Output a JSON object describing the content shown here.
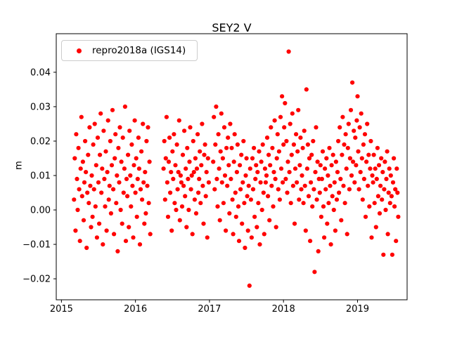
{
  "chart_data": {
    "type": "scatter",
    "title": "SEY2 V",
    "xlabel": "",
    "ylabel": "m",
    "grid": false,
    "legend_position": "upper left",
    "xlim": [
      2014.93,
      2019.67
    ],
    "ylim": [
      -0.0261,
      0.0512
    ],
    "xticks": {
      "values": [
        2015,
        2016,
        2017,
        2018,
        2019
      ],
      "labels": [
        "2015",
        "2016",
        "2017",
        "2018",
        "2019"
      ]
    },
    "yticks": {
      "values": [
        -0.02,
        -0.01,
        0.0,
        0.01,
        0.02,
        0.03,
        0.04
      ],
      "labels": [
        "−0.02",
        "−0.01",
        "0.00",
        "0.01",
        "0.02",
        "0.03",
        "0.04"
      ]
    },
    "series": [
      {
        "name": "repro2018a (IGS14)",
        "color": "#ff0000",
        "marker": "circle",
        "marker_radius_px": 3.1,
        "y_unit_scale": 0.001,
        "runs": [
          {
            "x_start": 2015.17,
            "x_step": 0.01,
            "y_mm": [
              3,
              15,
              -6,
              22,
              9,
              0,
              18,
              6,
              -9,
              12,
              27,
              4,
              14,
              -3,
              8,
              20,
              11,
              -11,
              5,
              16,
              2,
              24,
              7,
              -5,
              10,
              -2,
              19,
              6,
              25,
              1,
              13,
              -8,
              21,
              8,
              -4,
              16,
              28,
              5,
              12,
              -10,
              23,
              9,
              1,
              17,
              -6,
              11,
              26,
              3,
              7,
              20,
              -1,
              13,
              29,
              6,
              -7,
              15,
              22,
              2,
              10,
              -12,
              18,
              8,
              24,
              0,
              14,
              -4,
              21,
              5,
              12,
              30,
              -9,
              9,
              4,
              16,
              -5,
              23,
              10,
              1,
              19,
              7,
              -8,
              13,
              26,
              5,
              15,
              -2,
              9,
              21,
              12,
              -10,
              6,
              17,
              3,
              25,
              8,
              -4,
              11,
              -1,
              20,
              7,
              24,
              2,
              14,
              -7
            ]
          },
          {
            "x_start": 2016.38,
            "x_step": 0.01,
            "y_mm": [
              12,
              20,
              3,
              15,
              27,
              8,
              -2,
              14,
              21,
              5,
              11,
              -6,
              17,
              9,
              22,
              2,
              13,
              0,
              19,
              6,
              11,
              26,
              -3,
              10,
              8,
              1,
              16,
              7,
              23,
              4,
              12,
              -5,
              18,
              9,
              0,
              14,
              24,
              6,
              10,
              -7,
              20,
              11,
              3,
              15,
              -1,
              12,
              22,
              5,
              9,
              17,
              2,
              13,
              25,
              7,
              -4,
              16,
              19,
              4,
              11,
              -8,
              15,
              8
            ]
          },
          {
            "x_start": 2017.05,
            "x_step": 0.01,
            "y_mm": [
              14,
              27,
              6,
              19,
              30,
              9,
              1,
              22,
              12,
              -3,
              17,
              28,
              8,
              15,
              2,
              24,
              10,
              -6,
              18,
              7,
              21,
              13,
              -1,
              25,
              9,
              18,
              3,
              -7,
              14,
              22,
              5,
              -2,
              11,
              19,
              1,
              -9,
              13,
              6,
              16,
              -4,
              8,
              20,
              2,
              -11,
              10,
              15,
              4,
              -6,
              7,
              -22,
              12,
              3,
              -8,
              15,
              6,
              18,
              -2,
              9,
              13,
              -5,
              11,
              2,
              17,
              -10,
              8,
              14,
              0,
              19,
              5,
              -7,
              12,
              8,
              10,
              21,
              4,
              16,
              -3,
              13,
              24,
              7,
              18,
              1,
              11,
              26,
              9,
              -5,
              15,
              22,
              6,
              17,
              3,
              27,
              12,
              33,
              8,
              19,
              24,
              31,
              9,
              20,
              5,
              14,
              46,
              11,
              25,
              2,
              16,
              28,
              7,
              19,
              -4,
              12,
              22,
              8,
              17,
              29,
              3,
              13,
              21,
              6,
              10,
              18,
              2,
              23,
              7,
              -6,
              35,
              12,
              19,
              4,
              15,
              -9,
              8,
              16,
              1,
              20,
              6,
              -18,
              11,
              24,
              3,
              14,
              -12,
              9,
              5,
              13,
              -2,
              9,
              17,
              1,
              -8,
              12,
              6,
              15,
              -4,
              10,
              2,
              18,
              7,
              -10,
              13,
              4,
              16,
              0,
              8,
              -6,
              14,
              3,
              11,
              20,
              5,
              24,
              9,
              -3,
              16,
              27,
              7,
              19,
              2,
              22,
              12,
              -7,
              18,
              25,
              6,
              15,
              29,
              10,
              37,
              14,
              23,
              8,
              21,
              13,
              26,
              33,
              17,
              6,
              24,
              11,
              28,
              15,
              3,
              19,
              9,
              22,
              -2,
              14,
              25,
              7,
              16,
              1,
              12,
              20,
              -8,
              10,
              8,
              16,
              2,
              12,
              -5,
              9,
              18,
              4,
              13,
              -1,
              7,
              15,
              3,
              11,
              -13,
              6,
              14,
              0,
              9,
              17,
              -7,
              5,
              12,
              2,
              10,
              4,
              -13,
              8,
              15,
              1,
              6,
              -9,
              12,
              5,
              -2
            ]
          }
        ]
      }
    ]
  }
}
